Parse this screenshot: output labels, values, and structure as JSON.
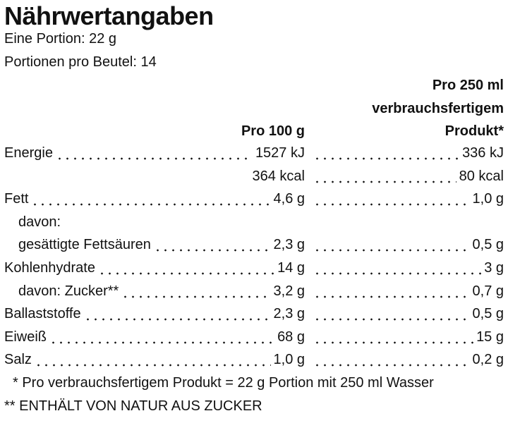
{
  "title": "Nährwertangaben",
  "serving": [
    "Eine Portion: 22 g",
    "Portionen pro Beutel: 14"
  ],
  "table": {
    "headers": [
      [
        "Pro 100 g"
      ],
      [
        "Pro 250 ml",
        "verbrauchsfertigem",
        "Produkt*"
      ]
    ],
    "rows": [
      {
        "label": "Energie",
        "values": [
          "1527 kJ",
          "336 kJ"
        ]
      },
      {
        "label": null,
        "values": [
          "364 kcal",
          "80 kcal"
        ]
      },
      {
        "label": "Fett",
        "values": [
          "4,6 g",
          "1,0 g"
        ]
      },
      {
        "label": "davon:",
        "indent": true
      },
      {
        "label": "gesättigte Fettsäuren",
        "indent": true,
        "values": [
          "2,3 g",
          "0,5 g"
        ]
      },
      {
        "label": "Kohlenhydrate",
        "values": [
          "14 g",
          "3 g"
        ]
      },
      {
        "label": "davon: Zucker**",
        "indent": true,
        "values": [
          "3,2 g",
          "0,7 g"
        ]
      },
      {
        "label": "Ballaststoffe",
        "values": [
          "2,3 g",
          "0,5 g"
        ]
      },
      {
        "label": "Eiweiß",
        "values": [
          "68 g",
          "15 g"
        ]
      },
      {
        "label": "Salz",
        "values": [
          "1,0 g",
          "0,2 g"
        ]
      }
    ]
  },
  "footnotes": [
    "* Pro verbrauchsfertigem Produkt = 22 g Portion mit 250 ml Wasser",
    "** ENTHÄLT VON NATUR AUS ZUCKER"
  ]
}
